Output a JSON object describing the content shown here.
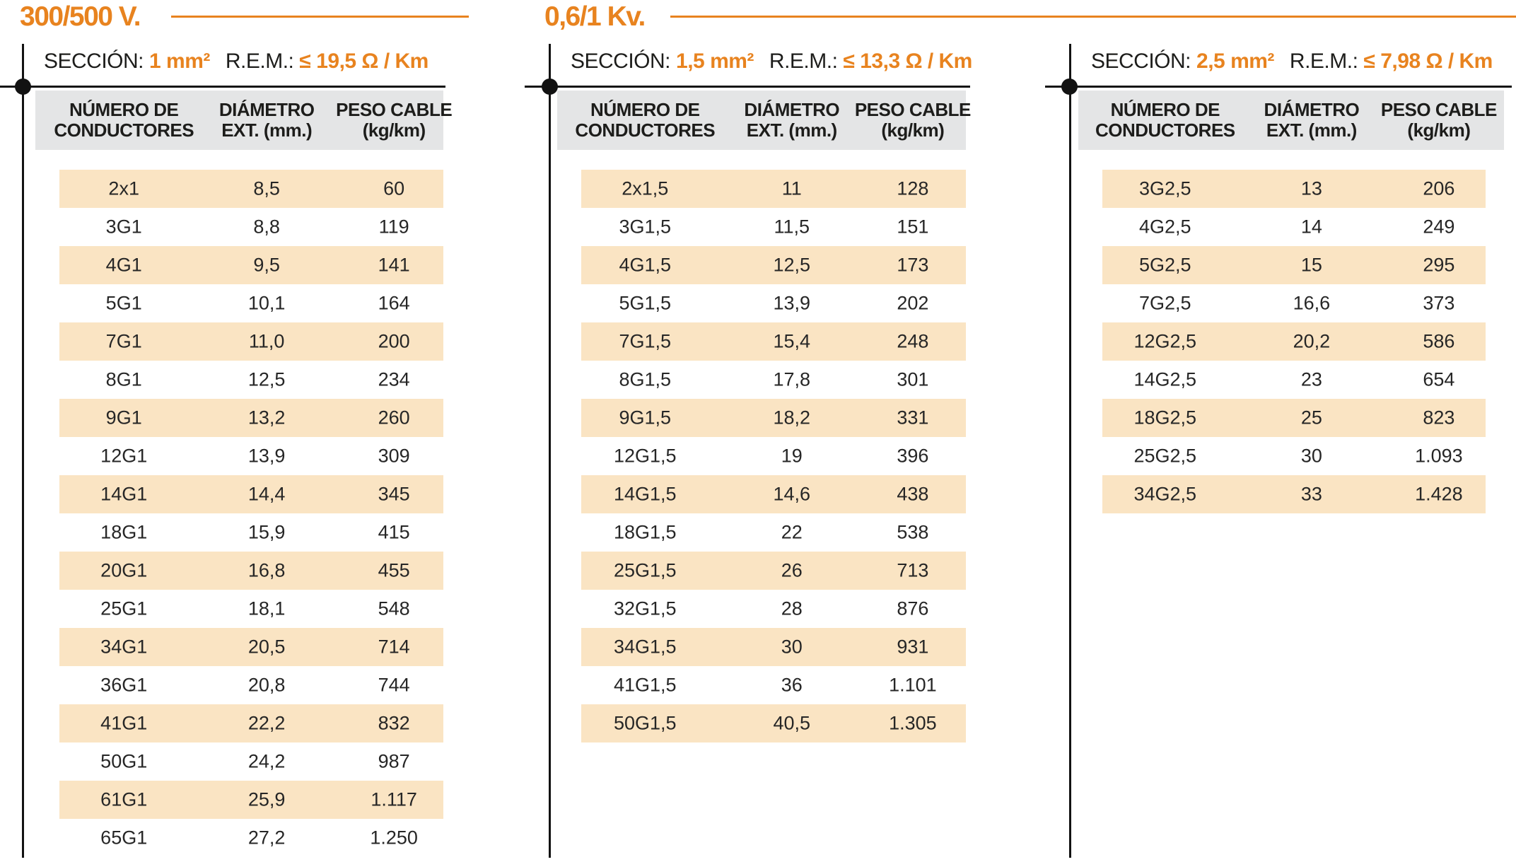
{
  "colors": {
    "accent_orange": "#E8831F",
    "row_shade": "#FAE4C3",
    "header_bg": "#E4E5E6",
    "ink": "#1D1D1B"
  },
  "tables": [
    {
      "voltage_title": "300/500 V.",
      "seccion_label": "SECCIÓN:",
      "seccion_value": "1 mm²",
      "rem_label": "R.E.M.:",
      "rem_value": "≤ 19,5 Ω / Km",
      "columns": [
        {
          "l1": "NÚMERO DE",
          "l2": "CONDUCTORES"
        },
        {
          "l1": "DIÁMETRO",
          "l2": "EXT. (mm.)"
        },
        {
          "l1": "PESO CABLE",
          "l2": "(kg/km)"
        }
      ],
      "rows": [
        [
          "2x1",
          "8,5",
          "60"
        ],
        [
          "3G1",
          "8,8",
          "119"
        ],
        [
          "4G1",
          "9,5",
          "141"
        ],
        [
          "5G1",
          "10,1",
          "164"
        ],
        [
          "7G1",
          "11,0",
          "200"
        ],
        [
          "8G1",
          "12,5",
          "234"
        ],
        [
          "9G1",
          "13,2",
          "260"
        ],
        [
          "12G1",
          "13,9",
          "309"
        ],
        [
          "14G1",
          "14,4",
          "345"
        ],
        [
          "18G1",
          "15,9",
          "415"
        ],
        [
          "20G1",
          "16,8",
          "455"
        ],
        [
          "25G1",
          "18,1",
          "548"
        ],
        [
          "34G1",
          "20,5",
          "714"
        ],
        [
          "36G1",
          "20,8",
          "744"
        ],
        [
          "41G1",
          "22,2",
          "832"
        ],
        [
          "50G1",
          "24,2",
          "987"
        ],
        [
          "61G1",
          "25,9",
          "1.117"
        ],
        [
          "65G1",
          "27,2",
          "1.250"
        ]
      ]
    },
    {
      "voltage_title": "0,6/1 Kv.",
      "seccion_label": "SECCIÓN:",
      "seccion_value": "1,5 mm²",
      "rem_label": "R.E.M.:",
      "rem_value": "≤ 13,3 Ω / Km",
      "columns": [
        {
          "l1": "NÚMERO DE",
          "l2": "CONDUCTORES"
        },
        {
          "l1": "DIÁMETRO",
          "l2": "EXT. (mm.)"
        },
        {
          "l1": "PESO CABLE",
          "l2": "(kg/km)"
        }
      ],
      "rows": [
        [
          "2x1,5",
          "11",
          "128"
        ],
        [
          "3G1,5",
          "11,5",
          "151"
        ],
        [
          "4G1,5",
          "12,5",
          "173"
        ],
        [
          "5G1,5",
          "13,9",
          "202"
        ],
        [
          "7G1,5",
          "15,4",
          "248"
        ],
        [
          "8G1,5",
          "17,8",
          "301"
        ],
        [
          "9G1,5",
          "18,2",
          "331"
        ],
        [
          "12G1,5",
          "19",
          "396"
        ],
        [
          "14G1,5",
          "14,6",
          "438"
        ],
        [
          "18G1,5",
          "22",
          "538"
        ],
        [
          "25G1,5",
          "26",
          "713"
        ],
        [
          "32G1,5",
          "28",
          "876"
        ],
        [
          "34G1,5",
          "30",
          "931"
        ],
        [
          "41G1,5",
          "36",
          "1.101"
        ],
        [
          "50G1,5",
          "40,5",
          "1.305"
        ]
      ]
    },
    {
      "voltage_title": "",
      "seccion_label": "SECCIÓN:",
      "seccion_value": "2,5 mm²",
      "rem_label": "R.E.M.:",
      "rem_value": "≤ 7,98 Ω / Km",
      "columns": [
        {
          "l1": "NÚMERO DE",
          "l2": "CONDUCTORES"
        },
        {
          "l1": "DIÁMETRO",
          "l2": "EXT. (mm.)"
        },
        {
          "l1": "PESO CABLE",
          "l2": "(kg/km)"
        }
      ],
      "rows": [
        [
          "3G2,5",
          "13",
          "206"
        ],
        [
          "4G2,5",
          "14",
          "249"
        ],
        [
          "5G2,5",
          "15",
          "295"
        ],
        [
          "7G2,5",
          "16,6",
          "373"
        ],
        [
          "12G2,5",
          "20,2",
          "586"
        ],
        [
          "14G2,5",
          "23",
          "654"
        ],
        [
          "18G2,5",
          "25",
          "823"
        ],
        [
          "25G2,5",
          "30",
          "1.093"
        ],
        [
          "34G2,5",
          "33",
          "1.428"
        ]
      ]
    }
  ]
}
